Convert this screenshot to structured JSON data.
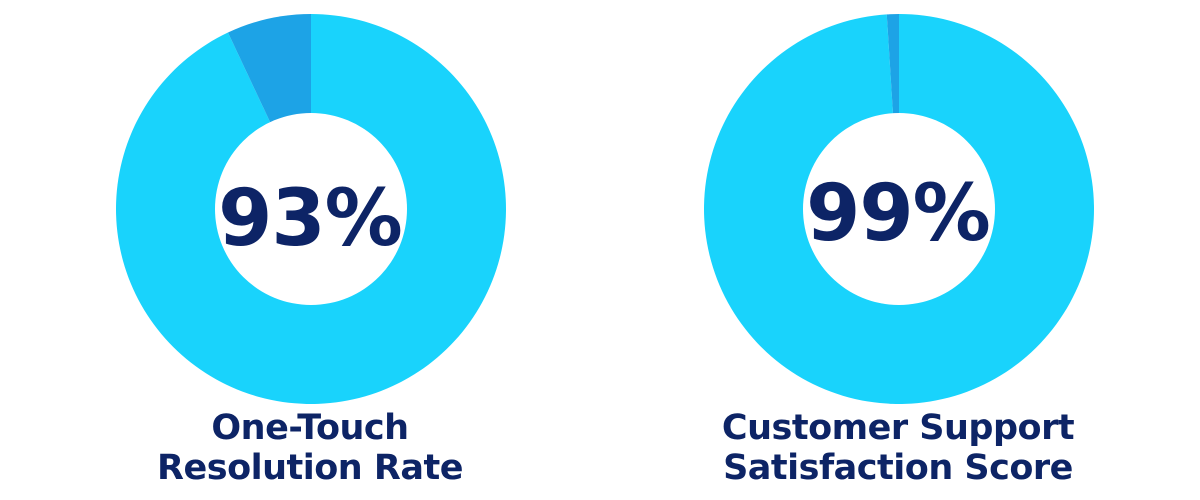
{
  "colors": {
    "main": "#19d3fc",
    "remainder": "#1da3e6",
    "hole": "#ffffff",
    "text": "#0d2466"
  },
  "chart_data": [
    {
      "type": "pie",
      "variant": "donut",
      "value_label": "93%",
      "caption_line1": "One-Touch",
      "caption_line2": "Resolution Rate",
      "values": [
        93,
        7
      ]
    },
    {
      "type": "pie",
      "variant": "donut",
      "value_label": "99%",
      "caption_line1": "Customer Support",
      "caption_line2": "Satisfaction Score",
      "values": [
        99,
        1
      ]
    }
  ]
}
